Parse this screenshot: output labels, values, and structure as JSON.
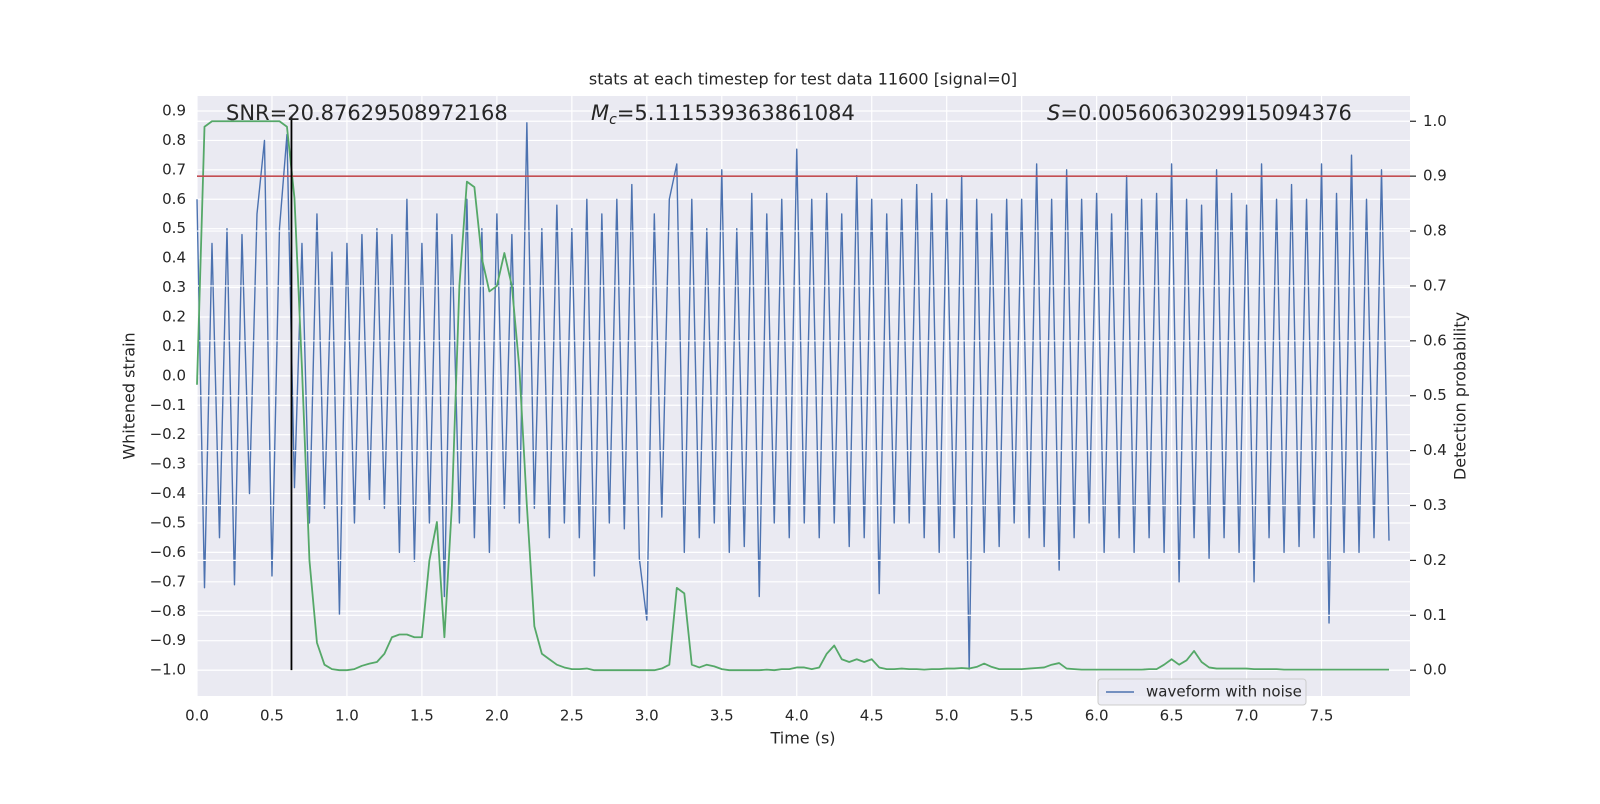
{
  "chart_data": {
    "type": "line",
    "title": "stats at each timestep for test data 11600 [signal=0]",
    "x_label": "Time (s)",
    "y_label": "Whitened strain",
    "y2_label": "Detection probability",
    "xlim": [
      0,
      8.09
    ],
    "ylim": [
      -1.088,
      0.951
    ],
    "y2lim": [
      -0.047,
      1.046
    ],
    "xticks": [
      {
        "value": 0,
        "label": "0.0"
      },
      0.5,
      {
        "value": 1,
        "label": "1.0"
      },
      1.5,
      {
        "value": 2,
        "label": "2.0"
      },
      2.5,
      {
        "value": 3,
        "label": "3.0"
      },
      3.5,
      {
        "value": 4,
        "label": "4.0"
      },
      4.5,
      {
        "value": 5,
        "label": "5.0"
      },
      5.5,
      {
        "value": 6,
        "label": "6.0"
      },
      6.5,
      {
        "value": 7,
        "label": "7.0"
      },
      7.5
    ],
    "yticks": [
      {
        "value": -1,
        "label": "−1.0"
      },
      {
        "value": -0.9,
        "label": "−0.9"
      },
      {
        "value": -0.8,
        "label": "−0.8"
      },
      {
        "value": -0.7,
        "label": "−0.7"
      },
      {
        "value": -0.6,
        "label": "−0.6"
      },
      {
        "value": -0.5,
        "label": "−0.5"
      },
      {
        "value": -0.4,
        "label": "−0.4"
      },
      {
        "value": -0.3,
        "label": "−0.3"
      },
      {
        "value": -0.2,
        "label": "−0.2"
      },
      {
        "value": -0.1,
        "label": "−0.1"
      },
      {
        "value": 0,
        "label": "0.0"
      },
      0.1,
      0.2,
      0.3,
      0.4,
      0.5,
      0.6,
      0.7,
      0.8,
      0.9
    ],
    "y2ticks": [
      {
        "value": 0,
        "label": "0.0"
      },
      0.1,
      0.2,
      0.3,
      0.4,
      0.5,
      0.6,
      0.7,
      0.8,
      0.9,
      {
        "value": 1,
        "label": "1.0"
      }
    ],
    "grid": true,
    "legend": "lower right",
    "x": [
      0,
      0.05,
      0.1,
      0.15,
      0.2,
      0.25,
      0.3,
      0.35,
      0.4,
      0.45,
      0.5,
      0.55,
      0.6,
      0.65,
      0.7,
      0.75,
      0.8,
      0.85,
      0.9,
      0.95,
      1,
      1.05,
      1.1,
      1.15,
      1.2,
      1.25,
      1.3,
      1.35,
      1.4,
      1.45,
      1.5,
      1.55,
      1.6,
      1.65,
      1.7,
      1.75,
      1.8,
      1.85,
      1.9,
      1.95,
      2,
      2.05,
      2.1,
      2.15,
      2.2,
      2.25,
      2.3,
      2.35,
      2.4,
      2.45,
      2.5,
      2.55,
      2.6,
      2.65,
      2.7,
      2.75,
      2.8,
      2.85,
      2.9,
      2.95,
      3,
      3.05,
      3.1,
      3.15,
      3.2,
      3.25,
      3.3,
      3.35,
      3.4,
      3.45,
      3.5,
      3.55,
      3.6,
      3.65,
      3.7,
      3.75,
      3.8,
      3.85,
      3.9,
      3.95,
      4,
      4.05,
      4.1,
      4.15,
      4.2,
      4.25,
      4.3,
      4.35,
      4.4,
      4.45,
      4.5,
      4.55,
      4.6,
      4.65,
      4.7,
      4.75,
      4.8,
      4.85,
      4.9,
      4.95,
      5,
      5.05,
      5.1,
      5.15,
      5.2,
      5.25,
      5.3,
      5.35,
      5.4,
      5.45,
      5.5,
      5.55,
      5.6,
      5.65,
      5.7,
      5.75,
      5.8,
      5.85,
      5.9,
      5.95,
      6,
      6.05,
      6.1,
      6.15,
      6.2,
      6.25,
      6.3,
      6.35,
      6.4,
      6.45,
      6.5,
      6.55,
      6.6,
      6.65,
      6.7,
      6.75,
      6.8,
      6.85,
      6.9,
      6.95,
      7,
      7.05,
      7.1,
      7.15,
      7.2,
      7.25,
      7.3,
      7.35,
      7.4,
      7.45,
      7.5,
      7.55,
      7.6,
      7.65,
      7.7,
      7.75,
      7.8,
      7.85,
      7.9,
      7.95
    ],
    "series": [
      {
        "name": "waveform with noise",
        "color": "#4c72b0",
        "values": [
          0.6,
          -0.72,
          0.45,
          -0.55,
          0.5,
          -0.71,
          0.48,
          -0.4,
          0.55,
          0.8,
          -0.68,
          0.5,
          0.82,
          -0.38,
          0.45,
          -0.5,
          0.55,
          -0.45,
          0.42,
          -0.81,
          0.45,
          -0.5,
          0.48,
          -0.42,
          0.5,
          -0.45,
          0.48,
          -0.6,
          0.6,
          -0.63,
          0.45,
          -0.5,
          0.55,
          -0.75,
          0.48,
          -0.5,
          0.6,
          -0.55,
          0.5,
          -0.6,
          0.55,
          -0.45,
          0.48,
          -0.5,
          0.86,
          -0.45,
          0.5,
          -0.55,
          0.58,
          -0.5,
          0.5,
          -0.55,
          0.6,
          -0.68,
          0.55,
          -0.5,
          0.6,
          -0.52,
          0.65,
          -0.62,
          -0.83,
          0.55,
          -0.48,
          0.6,
          0.72,
          -0.6,
          0.6,
          -0.55,
          0.5,
          -0.5,
          0.7,
          -0.6,
          0.5,
          -0.58,
          0.62,
          -0.75,
          0.55,
          -0.5,
          0.6,
          -0.55,
          0.77,
          -0.5,
          0.6,
          -0.55,
          0.62,
          -0.5,
          0.55,
          -0.58,
          0.68,
          -0.55,
          0.6,
          -0.74,
          0.55,
          -0.5,
          0.6,
          -0.5,
          0.65,
          -0.55,
          0.62,
          -0.6,
          0.6,
          -0.55,
          0.68,
          -1.0,
          0.6,
          -0.6,
          0.55,
          -0.58,
          0.6,
          -0.5,
          0.6,
          -0.55,
          0.72,
          -0.58,
          0.6,
          -0.66,
          0.7,
          -0.55,
          0.6,
          -0.5,
          0.62,
          -0.6,
          0.55,
          -0.55,
          0.68,
          -0.6,
          0.6,
          -0.55,
          0.62,
          -0.6,
          0.72,
          -0.7,
          0.6,
          -0.55,
          0.58,
          -0.62,
          0.7,
          -0.55,
          0.62,
          -0.6,
          0.58,
          -0.7,
          0.72,
          -0.55,
          0.6,
          -0.6,
          0.65,
          -0.58,
          0.6,
          -0.55,
          0.72,
          -0.84,
          0.62,
          -0.6,
          0.75,
          -0.6,
          0.6,
          -0.55,
          0.7,
          -0.56
        ]
      },
      {
        "color": "#55a868",
        "axis": "y2",
        "values": [
          0.52,
          0.99,
          1.0,
          1.0,
          1.0,
          1.0,
          1.0,
          1.0,
          1.0,
          1.0,
          1.0,
          1.0,
          0.99,
          0.86,
          0.55,
          0.2,
          0.05,
          0.01,
          0.002,
          0.0,
          0.0,
          0.002,
          0.008,
          0.012,
          0.015,
          0.03,
          0.06,
          0.065,
          0.065,
          0.06,
          0.06,
          0.2,
          0.27,
          0.06,
          0.3,
          0.7,
          0.89,
          0.88,
          0.75,
          0.69,
          0.7,
          0.76,
          0.7,
          0.55,
          0.3,
          0.08,
          0.03,
          0.02,
          0.01,
          0.005,
          0.002,
          0.002,
          0.003,
          0.0,
          0.0,
          0.0,
          0.0,
          0.0,
          0.0,
          0.0,
          0.0,
          0.0,
          0.003,
          0.01,
          0.15,
          0.14,
          0.01,
          0.005,
          0.01,
          0.007,
          0.002,
          0.0,
          0.0,
          0.0,
          0.0,
          0.0,
          0.001,
          0.0,
          0.002,
          0.002,
          0.005,
          0.005,
          0.002,
          0.005,
          0.03,
          0.045,
          0.02,
          0.015,
          0.02,
          0.015,
          0.02,
          0.005,
          0.002,
          0.002,
          0.003,
          0.002,
          0.002,
          0.001,
          0.002,
          0.002,
          0.003,
          0.003,
          0.004,
          0.003,
          0.006,
          0.012,
          0.006,
          0.002,
          0.002,
          0.002,
          0.002,
          0.003,
          0.004,
          0.005,
          0.01,
          0.013,
          0.003,
          0.002,
          0.001,
          0.001,
          0.001,
          0.001,
          0.001,
          0.001,
          0.001,
          0.001,
          0.001,
          0.002,
          0.002,
          0.01,
          0.02,
          0.01,
          0.018,
          0.035,
          0.015,
          0.005,
          0.003,
          0.003,
          0.003,
          0.003,
          0.003,
          0.002,
          0.002,
          0.002,
          0.002,
          0.001,
          0.001,
          0.001,
          0.001,
          0.001,
          0.001,
          0.001,
          0.001,
          0.001,
          0.001,
          0.001,
          0.001,
          0.001,
          0.001,
          0.001
        ]
      }
    ],
    "threshold_line": {
      "value": 0.9,
      "axis": "y2",
      "color": "#c44e52"
    },
    "marker_line": {
      "x": 0.63,
      "y": [
        -1.0,
        0.88
      ],
      "color": "#000000"
    },
    "annotations": [
      {
        "symbol": "SNR",
        "italic": false,
        "text": "=20.87629508972168"
      },
      {
        "symbol": "M",
        "subscript": "c",
        "italic": true,
        "text": "=5.111539363861084"
      },
      {
        "symbol": "S",
        "italic": true,
        "text": "=0.0056063029915094376"
      }
    ]
  }
}
